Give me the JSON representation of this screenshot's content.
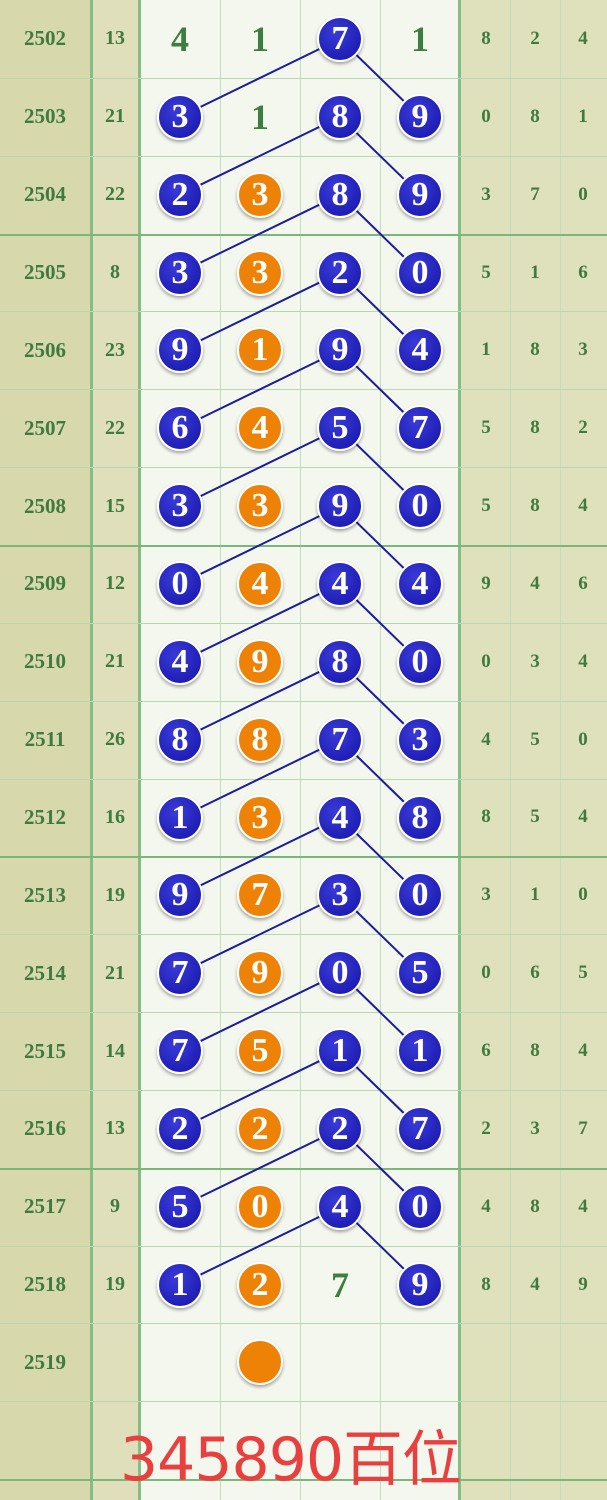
{
  "colors": {
    "blue_ball": "#1a1ab8",
    "orange_ball": "#ee8206",
    "line": "#1c1c9a",
    "text_green": "#3f7a3f",
    "caption": "#e8403e"
  },
  "rows": [
    {
      "period": "2502",
      "sum": "13",
      "cells": [
        {
          "v": "4",
          "t": "plain"
        },
        {
          "v": "1",
          "t": "plain"
        },
        {
          "v": "7",
          "t": "blue"
        },
        {
          "v": "1",
          "t": "plain"
        }
      ],
      "tail": [
        "8",
        "2",
        "4"
      ]
    },
    {
      "period": "2503",
      "sum": "21",
      "cells": [
        {
          "v": "3",
          "t": "blue"
        },
        {
          "v": "1",
          "t": "plain"
        },
        {
          "v": "8",
          "t": "blue"
        },
        {
          "v": "9",
          "t": "blue"
        }
      ],
      "tail": [
        "0",
        "8",
        "1"
      ]
    },
    {
      "period": "2504",
      "sum": "22",
      "cells": [
        {
          "v": "2",
          "t": "blue"
        },
        {
          "v": "3",
          "t": "orange"
        },
        {
          "v": "8",
          "t": "blue"
        },
        {
          "v": "9",
          "t": "blue"
        }
      ],
      "tail": [
        "3",
        "7",
        "0"
      ]
    },
    {
      "period": "2505",
      "sum": "8",
      "cells": [
        {
          "v": "3",
          "t": "blue"
        },
        {
          "v": "3",
          "t": "orange"
        },
        {
          "v": "2",
          "t": "blue"
        },
        {
          "v": "0",
          "t": "blue"
        }
      ],
      "tail": [
        "5",
        "1",
        "6"
      ]
    },
    {
      "period": "2506",
      "sum": "23",
      "cells": [
        {
          "v": "9",
          "t": "blue"
        },
        {
          "v": "1",
          "t": "orange"
        },
        {
          "v": "9",
          "t": "blue"
        },
        {
          "v": "4",
          "t": "blue"
        }
      ],
      "tail": [
        "1",
        "8",
        "3"
      ]
    },
    {
      "period": "2507",
      "sum": "22",
      "cells": [
        {
          "v": "6",
          "t": "blue"
        },
        {
          "v": "4",
          "t": "orange"
        },
        {
          "v": "5",
          "t": "blue"
        },
        {
          "v": "7",
          "t": "blue"
        }
      ],
      "tail": [
        "5",
        "8",
        "2"
      ]
    },
    {
      "period": "2508",
      "sum": "15",
      "cells": [
        {
          "v": "3",
          "t": "blue"
        },
        {
          "v": "3",
          "t": "orange"
        },
        {
          "v": "9",
          "t": "blue"
        },
        {
          "v": "0",
          "t": "blue"
        }
      ],
      "tail": [
        "5",
        "8",
        "4"
      ]
    },
    {
      "period": "2509",
      "sum": "12",
      "cells": [
        {
          "v": "0",
          "t": "blue"
        },
        {
          "v": "4",
          "t": "orange"
        },
        {
          "v": "4",
          "t": "blue"
        },
        {
          "v": "4",
          "t": "blue"
        }
      ],
      "tail": [
        "9",
        "4",
        "6"
      ]
    },
    {
      "period": "2510",
      "sum": "21",
      "cells": [
        {
          "v": "4",
          "t": "blue"
        },
        {
          "v": "9",
          "t": "orange"
        },
        {
          "v": "8",
          "t": "blue"
        },
        {
          "v": "0",
          "t": "blue"
        }
      ],
      "tail": [
        "0",
        "3",
        "4"
      ]
    },
    {
      "period": "2511",
      "sum": "26",
      "cells": [
        {
          "v": "8",
          "t": "blue"
        },
        {
          "v": "8",
          "t": "orange"
        },
        {
          "v": "7",
          "t": "blue"
        },
        {
          "v": "3",
          "t": "blue"
        }
      ],
      "tail": [
        "4",
        "5",
        "0"
      ]
    },
    {
      "period": "2512",
      "sum": "16",
      "cells": [
        {
          "v": "1",
          "t": "blue"
        },
        {
          "v": "3",
          "t": "orange"
        },
        {
          "v": "4",
          "t": "blue"
        },
        {
          "v": "8",
          "t": "blue"
        }
      ],
      "tail": [
        "8",
        "5",
        "4"
      ]
    },
    {
      "period": "2513",
      "sum": "19",
      "cells": [
        {
          "v": "9",
          "t": "blue"
        },
        {
          "v": "7",
          "t": "orange"
        },
        {
          "v": "3",
          "t": "blue"
        },
        {
          "v": "0",
          "t": "blue"
        }
      ],
      "tail": [
        "3",
        "1",
        "0"
      ]
    },
    {
      "period": "2514",
      "sum": "21",
      "cells": [
        {
          "v": "7",
          "t": "blue"
        },
        {
          "v": "9",
          "t": "orange"
        },
        {
          "v": "0",
          "t": "blue"
        },
        {
          "v": "5",
          "t": "blue"
        }
      ],
      "tail": [
        "0",
        "6",
        "5"
      ]
    },
    {
      "period": "2515",
      "sum": "14",
      "cells": [
        {
          "v": "7",
          "t": "blue"
        },
        {
          "v": "5",
          "t": "orange"
        },
        {
          "v": "1",
          "t": "blue"
        },
        {
          "v": "1",
          "t": "blue"
        }
      ],
      "tail": [
        "6",
        "8",
        "4"
      ]
    },
    {
      "period": "2516",
      "sum": "13",
      "cells": [
        {
          "v": "2",
          "t": "blue"
        },
        {
          "v": "2",
          "t": "orange"
        },
        {
          "v": "2",
          "t": "blue"
        },
        {
          "v": "7",
          "t": "blue"
        }
      ],
      "tail": [
        "2",
        "3",
        "7"
      ]
    },
    {
      "period": "2517",
      "sum": "9",
      "cells": [
        {
          "v": "5",
          "t": "blue"
        },
        {
          "v": "0",
          "t": "orange"
        },
        {
          "v": "4",
          "t": "blue"
        },
        {
          "v": "0",
          "t": "blue"
        }
      ],
      "tail": [
        "4",
        "8",
        "4"
      ]
    },
    {
      "period": "2518",
      "sum": "19",
      "cells": [
        {
          "v": "1",
          "t": "blue"
        },
        {
          "v": "2",
          "t": "orange"
        },
        {
          "v": "7",
          "t": "plain"
        },
        {
          "v": "9",
          "t": "blue"
        }
      ],
      "tail": [
        "8",
        "4",
        "9"
      ]
    },
    {
      "period": "2519",
      "sum": "",
      "cells": [
        {
          "v": "",
          "t": "none"
        },
        {
          "v": "",
          "t": "orange"
        },
        {
          "v": "",
          "t": "none"
        },
        {
          "v": "",
          "t": "none"
        }
      ],
      "tail": [
        "",
        "",
        ""
      ]
    }
  ],
  "caption": "345890百位"
}
